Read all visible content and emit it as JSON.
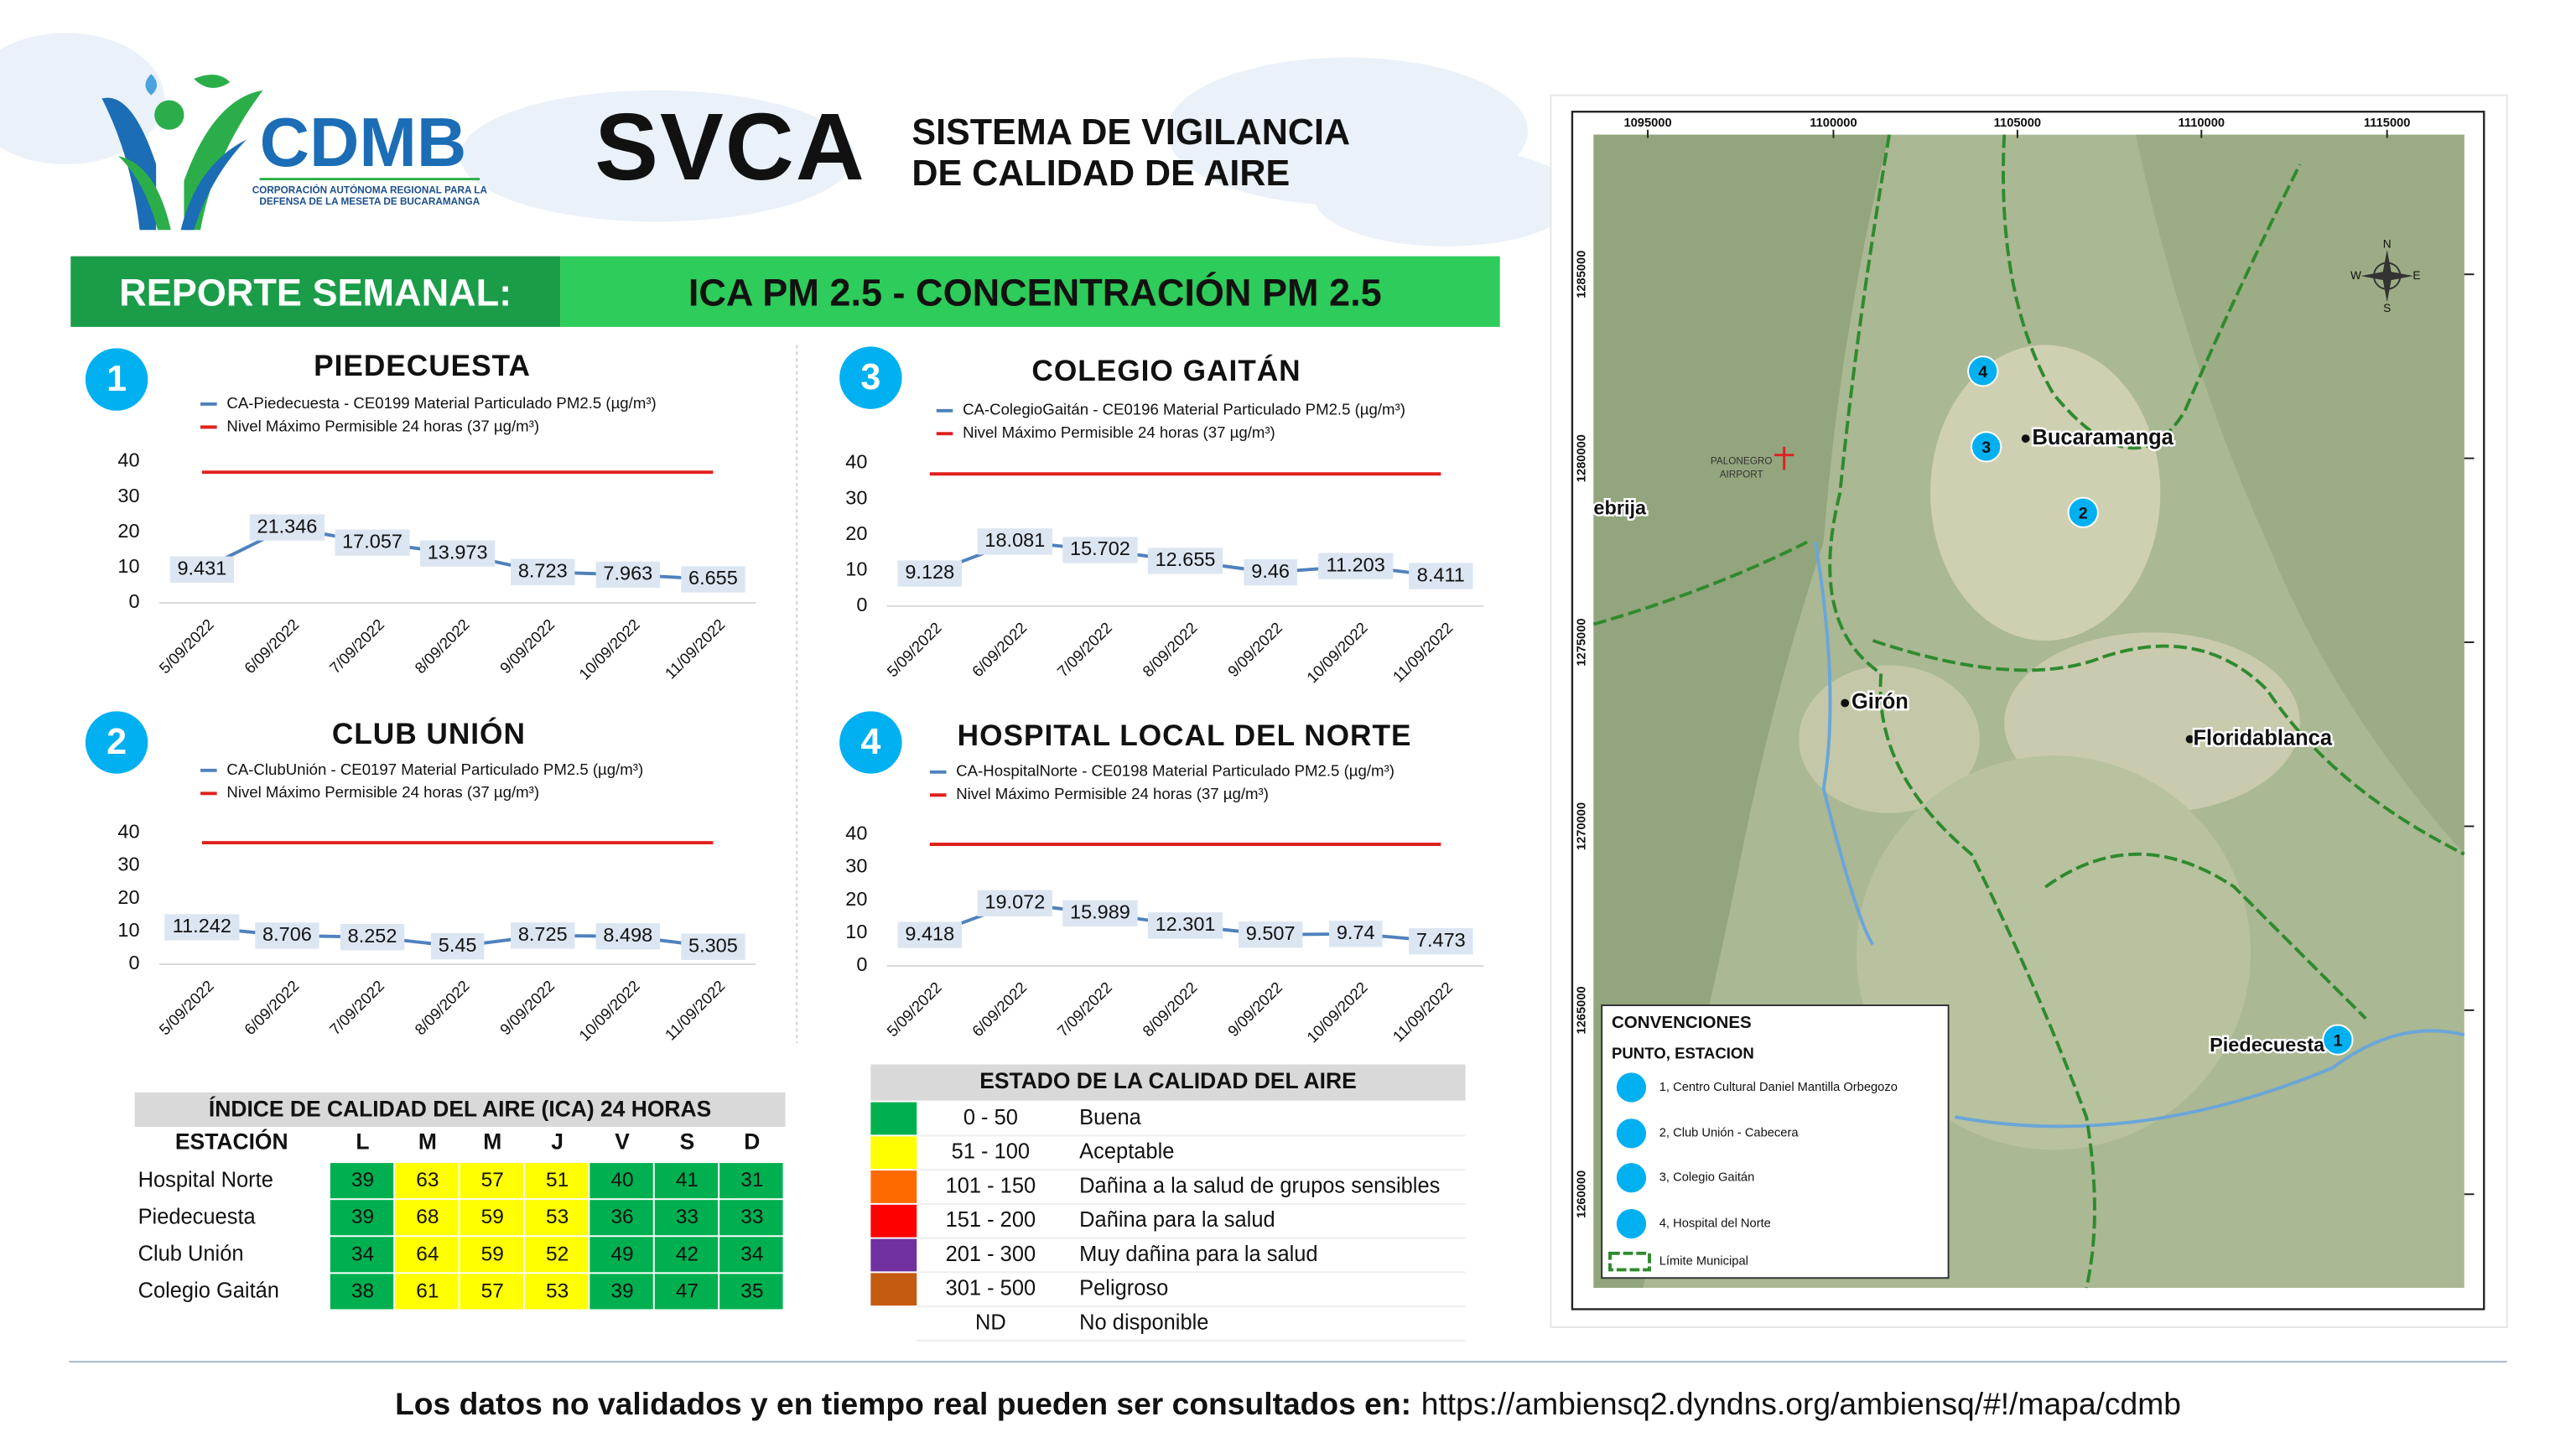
{
  "header": {
    "logo_text": "CDMB",
    "logo_subtitle": [
      "CORPORACIÓN AUTÓNOMA REGIONAL PARA LA",
      "DEFENSA DE LA MESETA DE BUCARAMANGA"
    ],
    "title": "SVCA",
    "subtitle": [
      "SISTEMA DE VIGILANCIA",
      "DE CALIDAD DE AIRE"
    ],
    "banner_left": "REPORTE SEMANAL:",
    "banner_right": "ICA PM 2.5 - CONCENTRACIÓN PM 2.5"
  },
  "chart_data": [
    {
      "type": "line",
      "badge": "1",
      "title": "PIEDECUESTA",
      "categories": [
        "5/09/2022",
        "6/09/2022",
        "7/09/2022",
        "8/09/2022",
        "9/09/2022",
        "10/09/2022",
        "11/09/2022"
      ],
      "series": [
        {
          "name": "CA-Piedecuesta - CE0199 Material Particulado PM2.5 (µg/m³)",
          "color": "#4f81bd",
          "values": [
            9.431,
            21.346,
            17.057,
            13.973,
            8.723,
            7.963,
            6.655
          ],
          "data_labels": true
        },
        {
          "name": "Nivel Máximo Permisible 24 horas (37 µg/m³)",
          "color": "#e0201b",
          "values": [
            37,
            37,
            37,
            37,
            37,
            37,
            37
          ],
          "data_labels": false
        }
      ],
      "ylim": [
        0,
        40
      ],
      "yticks": [
        0,
        10,
        20,
        30,
        40
      ],
      "grid": false
    },
    {
      "type": "line",
      "badge": "3",
      "title": "COLEGIO GAITÁN",
      "categories": [
        "5/09/2022",
        "6/09/2022",
        "7/09/2022",
        "8/09/2022",
        "9/09/2022",
        "10/09/2022",
        "11/09/2022"
      ],
      "series": [
        {
          "name": "CA-ColegioGaitán - CE0196 Material Particulado PM2.5 (µg/m³)",
          "color": "#4f81bd",
          "values": [
            9.128,
            18.081,
            15.702,
            12.655,
            9.46,
            11.203,
            8.411
          ],
          "data_labels": true
        },
        {
          "name": "Nivel Máximo Permisible 24 horas (37 µg/m³)",
          "color": "#e0201b",
          "values": [
            37,
            37,
            37,
            37,
            37,
            37,
            37
          ],
          "data_labels": false
        }
      ],
      "ylim": [
        0,
        40
      ],
      "yticks": [
        0,
        10,
        20,
        30,
        40
      ],
      "grid": false
    },
    {
      "type": "line",
      "badge": "2",
      "title": "CLUB UNIÓN",
      "categories": [
        "5/09/2022",
        "6/09/2022",
        "7/09/2022",
        "8/09/2022",
        "9/09/2022",
        "10/09/2022",
        "11/09/2022"
      ],
      "series": [
        {
          "name": "CA-ClubUnión - CE0197 Material Particulado PM2.5 (µg/m³)",
          "color": "#4f81bd",
          "values": [
            11.242,
            8.706,
            8.252,
            5.45,
            8.725,
            8.498,
            5.305
          ],
          "data_labels": true
        },
        {
          "name": "Nivel Máximo Permisible 24 horas (37 µg/m³)",
          "color": "#e0201b",
          "values": [
            37,
            37,
            37,
            37,
            37,
            37,
            37
          ],
          "data_labels": false
        }
      ],
      "ylim": [
        0,
        40
      ],
      "yticks": [
        0,
        10,
        20,
        30,
        40
      ],
      "grid": false
    },
    {
      "type": "line",
      "badge": "4",
      "title": "HOSPITAL LOCAL DEL NORTE",
      "categories": [
        "5/09/2022",
        "6/09/2022",
        "7/09/2022",
        "8/09/2022",
        "9/09/2022",
        "10/09/2022",
        "11/09/2022"
      ],
      "series": [
        {
          "name": "CA-HospitalNorte - CE0198 Material Particulado PM2.5 (µg/m³)",
          "color": "#4f81bd",
          "values": [
            9.418,
            19.072,
            15.989,
            12.301,
            9.507,
            9.74,
            7.473
          ],
          "data_labels": true
        },
        {
          "name": "Nivel Máximo Permisible 24 horas (37 µg/m³)",
          "color": "#e0201b",
          "values": [
            37,
            37,
            37,
            37,
            37,
            37,
            37
          ],
          "data_labels": false
        }
      ],
      "ylim": [
        0,
        40
      ],
      "yticks": [
        0,
        10,
        20,
        30,
        40
      ],
      "grid": false
    }
  ],
  "ica_table": {
    "title": "ÍNDICE DE CALIDAD DEL AIRE (ICA) 24 HORAS",
    "header": [
      "ESTACIÓN",
      "L",
      "M",
      "M",
      "J",
      "V",
      "S",
      "D"
    ],
    "rows": [
      {
        "station": "Hospital Norte",
        "values": [
          39,
          63,
          57,
          51,
          40,
          41,
          31
        ]
      },
      {
        "station": "Piedecuesta",
        "values": [
          39,
          68,
          59,
          53,
          36,
          33,
          33
        ]
      },
      {
        "station": "Club Unión",
        "values": [
          34,
          64,
          59,
          52,
          49,
          42,
          34
        ]
      },
      {
        "station": "Colegio Gaitán",
        "values": [
          38,
          61,
          57,
          53,
          39,
          47,
          35
        ]
      }
    ]
  },
  "quality_legend": {
    "title": "ESTADO DE LA CALIDAD DEL AIRE",
    "rows": [
      {
        "range": "0 - 50",
        "label": "Buena",
        "color": "#00b050"
      },
      {
        "range": "51 - 100",
        "label": "Aceptable",
        "color": "#ffff00"
      },
      {
        "range": "101 - 150",
        "label": "Dañina a la salud de grupos sensibles",
        "color": "#ff6a00"
      },
      {
        "range": "151 - 200",
        "label": "Dañina para la salud",
        "color": "#ff0000"
      },
      {
        "range": "201 - 300",
        "label": "Muy dañina para la salud",
        "color": "#7030a0"
      },
      {
        "range": "301 - 500",
        "label": "Peligroso",
        "color": "#c55a11"
      },
      {
        "range": "ND",
        "label": "No disponible",
        "color": "#ffffff"
      }
    ]
  },
  "map": {
    "x_labels": [
      "1095000",
      "1100000",
      "1105000",
      "1110000",
      "1115000"
    ],
    "y_labels": [
      "1285000",
      "1280000",
      "1275000",
      "1270000",
      "1265000",
      "1260000"
    ],
    "places": [
      "Bucaramanga",
      "Floridablanca",
      "Girón",
      "Piedecuesta",
      "ebrija"
    ],
    "airport": [
      "PALONEGRO",
      "AIRPORT"
    ],
    "stations": [
      "1",
      "2",
      "3",
      "4"
    ],
    "compass": [
      "N",
      "S",
      "E",
      "W"
    ],
    "legend": {
      "title": "CONVENCIONES",
      "subtitle": "PUNTO, ESTACION",
      "items": [
        "1, Centro Cultural Daniel Mantilla Orbegozo",
        "2, Club Unión - Cabecera",
        "3, Colegio Gaitán",
        "4, Hospital del Norte"
      ],
      "boundary": "Límite Municipal"
    }
  },
  "footer": {
    "text": "Los datos no validados y en tiempo real pueden ser consultados en:",
    "url": "https://ambiensq2.dyndns.org/ambiensq/#!/mapa/cdmb"
  }
}
